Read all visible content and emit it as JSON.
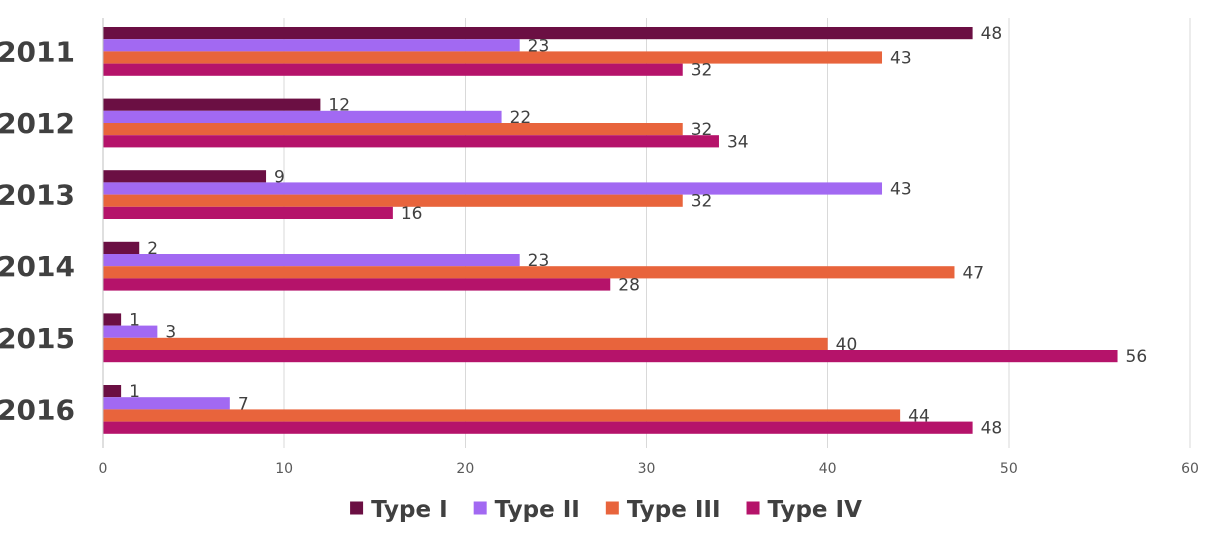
{
  "chart_data": {
    "type": "bar",
    "orientation": "horizontal",
    "categories": [
      "2011",
      "2012",
      "2013",
      "2014",
      "2015",
      "2016"
    ],
    "series": [
      {
        "name": "Type I",
        "color": "#6b0f43",
        "values": [
          48,
          12,
          9,
          2,
          1,
          1
        ]
      },
      {
        "name": "Type II",
        "color": "#a269f2",
        "values": [
          23,
          22,
          43,
          23,
          3,
          7
        ]
      },
      {
        "name": "Type III",
        "color": "#e8643c",
        "values": [
          43,
          32,
          32,
          47,
          40,
          44
        ]
      },
      {
        "name": "Type IV",
        "color": "#b5136a",
        "values": [
          32,
          34,
          16,
          28,
          56,
          48
        ]
      }
    ],
    "x_ticks": [
      "0",
      "10",
      "20",
      "30",
      "40",
      "50",
      "60"
    ],
    "xlim": [
      0,
      60
    ],
    "data_labels": true,
    "grid": "vertical",
    "legend_position": "bottom",
    "title": "",
    "xlabel": "",
    "ylabel": ""
  }
}
